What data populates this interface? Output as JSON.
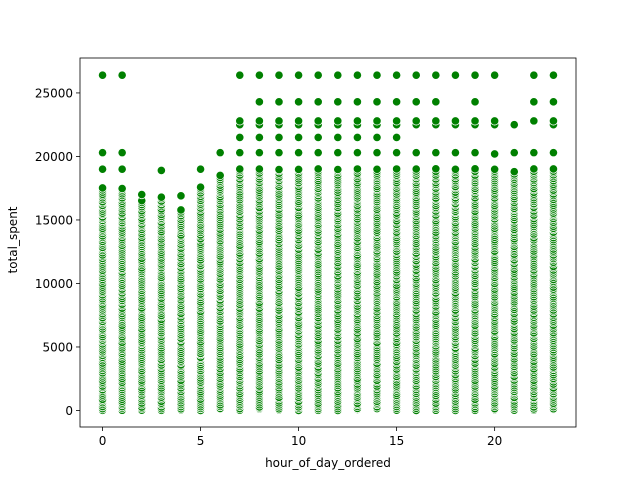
{
  "chart_data": {
    "type": "scatter",
    "title": "",
    "xlabel": "hour_of_day_ordered",
    "ylabel": "total_spent",
    "xlim": [
      -1.15,
      24.15
    ],
    "ylim": [
      -1300,
      27750
    ],
    "x_ticks": [
      0,
      5,
      10,
      15,
      20
    ],
    "y_ticks": [
      0,
      5000,
      10000,
      15000,
      20000,
      25000
    ],
    "x_tick_labels": [
      "0",
      "5",
      "10",
      "15",
      "20"
    ],
    "y_tick_labels": [
      "0",
      "5000",
      "10000",
      "15000",
      "20000",
      "25000"
    ],
    "grid": false,
    "legend": "none",
    "marker_color": "#008000",
    "marker_edge_color": "#ffffff",
    "series": [
      {
        "points_by_hour": [
          {
            "x": 0,
            "y_dense_max": 17500,
            "y_outliers": [
              19000,
              20300,
              26400
            ]
          },
          {
            "x": 1,
            "y_dense_max": 17500,
            "y_outliers": [
              19000,
              20300,
              26400
            ]
          },
          {
            "x": 2,
            "y_dense_max": 16500,
            "y_outliers": [
              17000
            ]
          },
          {
            "x": 3,
            "y_dense_max": 16800,
            "y_outliers": [
              18900
            ]
          },
          {
            "x": 4,
            "y_dense_max": 15800,
            "y_outliers": [
              16900
            ]
          },
          {
            "x": 5,
            "y_dense_max": 17600,
            "y_outliers": [
              19000
            ]
          },
          {
            "x": 6,
            "y_dense_max": 18500,
            "y_outliers": [
              20300
            ]
          },
          {
            "x": 7,
            "y_dense_max": 19000,
            "y_outliers": [
              20300,
              21500,
              22500,
              22800,
              26400
            ]
          },
          {
            "x": 8,
            "y_dense_max": 19000,
            "y_outliers": [
              20300,
              21500,
              22500,
              22800,
              24300,
              26400
            ]
          },
          {
            "x": 9,
            "y_dense_max": 19000,
            "y_outliers": [
              20300,
              21500,
              22500,
              22800,
              24300,
              26400
            ]
          },
          {
            "x": 10,
            "y_dense_max": 19000,
            "y_outliers": [
              20300,
              21500,
              22500,
              22800,
              24300,
              26400
            ]
          },
          {
            "x": 11,
            "y_dense_max": 19000,
            "y_outliers": [
              20300,
              21500,
              22500,
              22800,
              24300,
              26400
            ]
          },
          {
            "x": 12,
            "y_dense_max": 19000,
            "y_outliers": [
              20300,
              21500,
              22500,
              22800,
              24300,
              26400
            ]
          },
          {
            "x": 13,
            "y_dense_max": 19000,
            "y_outliers": [
              20300,
              21500,
              22500,
              22800,
              24300,
              26400
            ]
          },
          {
            "x": 14,
            "y_dense_max": 19000,
            "y_outliers": [
              20300,
              21500,
              22500,
              22800,
              24300,
              26400
            ]
          },
          {
            "x": 15,
            "y_dense_max": 19000,
            "y_outliers": [
              20300,
              21500,
              22500,
              22800,
              24300,
              26400
            ]
          },
          {
            "x": 16,
            "y_dense_max": 19000,
            "y_outliers": [
              20300,
              22500,
              22800,
              24300,
              26400
            ]
          },
          {
            "x": 17,
            "y_dense_max": 19000,
            "y_outliers": [
              20300,
              22500,
              22800,
              24300,
              26400
            ]
          },
          {
            "x": 18,
            "y_dense_max": 19000,
            "y_outliers": [
              20300,
              22500,
              22800,
              26400
            ]
          },
          {
            "x": 19,
            "y_dense_max": 19000,
            "y_outliers": [
              20300,
              22500,
              22800,
              24300,
              26400
            ]
          },
          {
            "x": 20,
            "y_dense_max": 19000,
            "y_outliers": [
              20200,
              22500,
              22800,
              26400
            ]
          },
          {
            "x": 21,
            "y_dense_max": 18800,
            "y_outliers": [
              20300,
              22500
            ]
          },
          {
            "x": 22,
            "y_dense_max": 19000,
            "y_outliers": [
              20300,
              22800,
              24300,
              26400
            ]
          },
          {
            "x": 23,
            "y_dense_max": 19000,
            "y_outliers": [
              20300,
              22500,
              22800,
              24300,
              26400
            ]
          }
        ]
      }
    ]
  }
}
